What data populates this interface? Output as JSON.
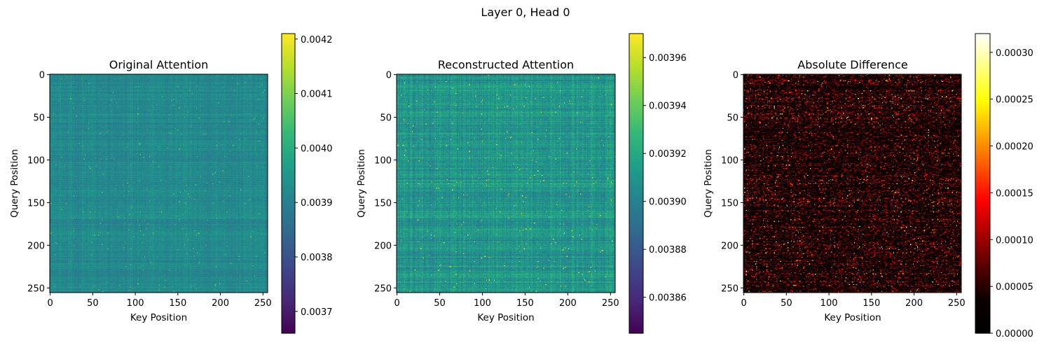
{
  "figure": {
    "suptitle": "Layer 0, Head 0"
  },
  "colormaps": {
    "viridis": [
      "#440154",
      "#482878",
      "#3e4989",
      "#31688e",
      "#26828e",
      "#1f9e89",
      "#35b779",
      "#6ece58",
      "#b5de2b",
      "#fde725"
    ],
    "hot": [
      "#000000",
      "#0b0000",
      "#550000",
      "#aa0000",
      "#ff0000",
      "#ff5500",
      "#ffaa00",
      "#ffff00",
      "#ffff80",
      "#ffffff"
    ]
  },
  "chart_data": [
    {
      "type": "heatmap",
      "title": "Original Attention",
      "xlabel": "Key Position",
      "ylabel": "Query Position",
      "xticks": [
        0,
        50,
        100,
        150,
        200,
        250
      ],
      "yticks": [
        0,
        50,
        100,
        150,
        200,
        250
      ],
      "xlim": [
        -0.5,
        255.5
      ],
      "ylim": [
        255.5,
        -0.5
      ],
      "shape": [
        256,
        256
      ],
      "colormap": "viridis",
      "clim": [
        0.00366,
        0.00421
      ],
      "colorbar_ticks": [
        0.0037,
        0.0038,
        0.0039,
        0.004,
        0.0041,
        0.0042
      ],
      "colorbar_labels": [
        "0.0037",
        "0.0038",
        "0.0039",
        "0.0040",
        "0.0041",
        "0.0042"
      ],
      "value_typical": 0.00392,
      "value_spread": 5e-05
    },
    {
      "type": "heatmap",
      "title": "Reconstructed Attention",
      "xlabel": "Key Position",
      "ylabel": "Query Position",
      "xticks": [
        0,
        50,
        100,
        150,
        200,
        250
      ],
      "yticks": [
        0,
        50,
        100,
        150,
        200,
        250
      ],
      "xlim": [
        -0.5,
        255.5
      ],
      "ylim": [
        255.5,
        -0.5
      ],
      "shape": [
        256,
        256
      ],
      "colormap": "viridis",
      "clim": [
        0.003845,
        0.00397
      ],
      "colorbar_ticks": [
        0.00386,
        0.00388,
        0.0039,
        0.00392,
        0.00394,
        0.00396
      ],
      "colorbar_labels": [
        "0.00386",
        "0.00388",
        "0.00390",
        "0.00392",
        "0.00394",
        "0.00396"
      ],
      "value_typical": 0.00391,
      "value_spread": 2e-05
    },
    {
      "type": "heatmap",
      "title": "Absolute Difference",
      "xlabel": "Key Position",
      "ylabel": "Query Position",
      "xticks": [
        0,
        50,
        100,
        150,
        200,
        250
      ],
      "yticks": [
        0,
        50,
        100,
        150,
        200,
        250
      ],
      "xlim": [
        -0.5,
        255.5
      ],
      "ylim": [
        255.5,
        -0.5
      ],
      "shape": [
        256,
        256
      ],
      "colormap": "hot",
      "clim": [
        0.0,
        0.00032
      ],
      "colorbar_ticks": [
        0.0,
        5e-05,
        0.0001,
        0.00015,
        0.0002,
        0.00025,
        0.0003
      ],
      "colorbar_labels": [
        "0.00000",
        "0.00005",
        "0.00010",
        "0.00015",
        "0.00020",
        "0.00025",
        "0.00030"
      ],
      "value_typical": 4e-05,
      "value_spread": 4e-05
    }
  ]
}
